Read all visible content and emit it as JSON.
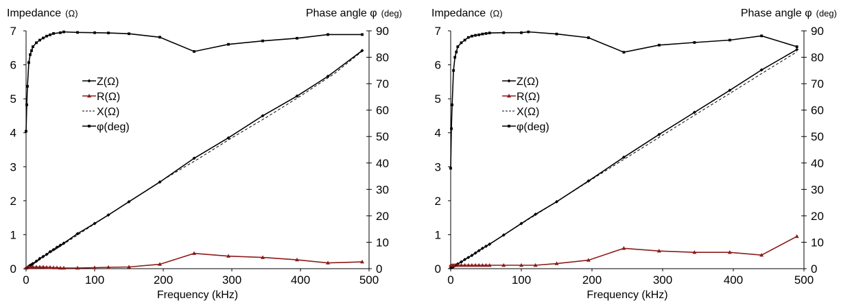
{
  "chart_data": [
    {
      "type": "line",
      "title": "",
      "left_axis_label": "Impedance",
      "left_axis_unit": "(Ω)",
      "right_axis_label": "Phase angle φ",
      "right_axis_unit": "(deg)",
      "xlabel": "Frequency (kHz)",
      "xlim": [
        0,
        500
      ],
      "ylim_left": [
        0,
        7
      ],
      "ylim_right": [
        0,
        90
      ],
      "x_ticks": [
        "0",
        "100",
        "200",
        "300",
        "400",
        "500"
      ],
      "y_left_ticks": [
        "0",
        "1",
        "2",
        "3",
        "4",
        "5",
        "6",
        "7"
      ],
      "y_right_ticks": [
        "0",
        "10",
        "20",
        "30",
        "40",
        "50",
        "60",
        "70",
        "80",
        "90"
      ],
      "legend_position": "center-left",
      "series": [
        {
          "name": "Z(Ω)",
          "axis": "left",
          "color": "#000000",
          "marker": "diamond",
          "dash": "",
          "x": [
            0,
            2,
            4,
            6,
            8,
            10,
            15,
            20,
            25,
            30,
            35,
            40,
            45,
            50,
            55,
            75,
            100,
            120,
            150,
            195,
            245,
            295,
            345,
            395,
            440,
            490
          ],
          "y": [
            0.02,
            0.04,
            0.07,
            0.1,
            0.12,
            0.15,
            0.22,
            0.3,
            0.36,
            0.42,
            0.5,
            0.56,
            0.63,
            0.69,
            0.75,
            1.03,
            1.33,
            1.58,
            1.97,
            2.55,
            3.25,
            3.85,
            4.5,
            5.08,
            5.66,
            6.42
          ]
        },
        {
          "name": "R(Ω)",
          "axis": "left",
          "color": "#8b1a1a",
          "marker": "triangle",
          "dash": "",
          "x": [
            0,
            2,
            4,
            6,
            8,
            10,
            15,
            20,
            25,
            30,
            35,
            40,
            45,
            50,
            55,
            75,
            100,
            120,
            150,
            195,
            245,
            295,
            345,
            395,
            440,
            490
          ],
          "y": [
            0.02,
            0.03,
            0.04,
            0.05,
            0.05,
            0.05,
            0.05,
            0.05,
            0.05,
            0.04,
            0.04,
            0.03,
            0.03,
            0.02,
            0.02,
            0.02,
            0.03,
            0.04,
            0.05,
            0.13,
            0.45,
            0.37,
            0.33,
            0.26,
            0.17,
            0.2
          ]
        },
        {
          "name": "X(Ω)",
          "axis": "left",
          "color": "#000000",
          "marker": "none",
          "dash": "4,3",
          "x": [
            0,
            50,
            100,
            150,
            200,
            250,
            300,
            350,
            400,
            450,
            490
          ],
          "y": [
            0.0,
            0.66,
            1.32,
            1.97,
            2.62,
            3.22,
            3.85,
            4.45,
            5.08,
            5.75,
            6.4
          ]
        },
        {
          "name": "φ(deg)",
          "axis": "right",
          "color": "#000000",
          "marker": "square",
          "dash": "",
          "x": [
            0,
            1,
            2,
            4,
            6,
            8,
            10,
            15,
            20,
            25,
            30,
            35,
            40,
            50,
            55,
            75,
            100,
            120,
            150,
            195,
            245,
            295,
            345,
            395,
            440,
            490
          ],
          "y": [
            52,
            62,
            69,
            78,
            81,
            82.5,
            84,
            85.5,
            86.5,
            87.3,
            88,
            88.5,
            89,
            89.3,
            89.6,
            89.4,
            89.3,
            89.2,
            88.9,
            87.6,
            82.2,
            84.9,
            86.2,
            87.2,
            88.6,
            88.6
          ]
        }
      ]
    },
    {
      "type": "line",
      "title": "",
      "left_axis_label": "Impedance",
      "left_axis_unit": "(Ω)",
      "right_axis_label": "Phase angle φ",
      "right_axis_unit": "(deg)",
      "xlabel": "Frequency (kHz)",
      "xlim": [
        0,
        500
      ],
      "ylim_left": [
        0,
        7
      ],
      "ylim_right": [
        0,
        90
      ],
      "x_ticks": [
        "0",
        "100",
        "200",
        "300",
        "400",
        "500"
      ],
      "y_left_ticks": [
        "0",
        "1",
        "2",
        "3",
        "4",
        "5",
        "6",
        "7"
      ],
      "y_right_ticks": [
        "0",
        "10",
        "20",
        "30",
        "40",
        "50",
        "60",
        "70",
        "80",
        "90"
      ],
      "legend_position": "center-left",
      "series": [
        {
          "name": "Z(Ω)",
          "axis": "left",
          "color": "#000000",
          "marker": "diamond",
          "dash": "",
          "x": [
            0,
            2,
            4,
            6,
            8,
            10,
            15,
            20,
            25,
            30,
            35,
            40,
            45,
            50,
            55,
            75,
            100,
            120,
            150,
            195,
            245,
            295,
            345,
            395,
            440,
            490
          ],
          "y": [
            0.02,
            0.04,
            0.06,
            0.09,
            0.11,
            0.14,
            0.2,
            0.27,
            0.33,
            0.39,
            0.46,
            0.53,
            0.6,
            0.66,
            0.72,
            0.99,
            1.33,
            1.6,
            1.97,
            2.58,
            3.28,
            3.95,
            4.6,
            5.25,
            5.85,
            6.45
          ]
        },
        {
          "name": "R(Ω)",
          "axis": "left",
          "color": "#8b1a1a",
          "marker": "triangle",
          "dash": "",
          "x": [
            0,
            2,
            4,
            6,
            8,
            10,
            15,
            20,
            25,
            30,
            35,
            40,
            45,
            50,
            55,
            75,
            100,
            120,
            150,
            195,
            245,
            295,
            345,
            395,
            440,
            490
          ],
          "y": [
            0.1,
            0.1,
            0.1,
            0.1,
            0.1,
            0.1,
            0.1,
            0.1,
            0.1,
            0.1,
            0.1,
            0.1,
            0.1,
            0.1,
            0.1,
            0.1,
            0.1,
            0.1,
            0.15,
            0.25,
            0.6,
            0.52,
            0.48,
            0.48,
            0.4,
            0.95
          ]
        },
        {
          "name": "X(Ω)",
          "axis": "left",
          "color": "#000000",
          "marker": "none",
          "dash": "4,3",
          "x": [
            0,
            50,
            100,
            150,
            200,
            250,
            300,
            350,
            400,
            450,
            490
          ],
          "y": [
            0.0,
            0.66,
            1.32,
            1.97,
            2.63,
            3.28,
            3.93,
            4.58,
            5.22,
            5.87,
            6.38
          ]
        },
        {
          "name": "φ(deg)",
          "axis": "right",
          "color": "#000000",
          "marker": "square",
          "dash": "",
          "x": [
            0,
            1,
            2,
            4,
            6,
            8,
            10,
            15,
            20,
            25,
            30,
            35,
            40,
            45,
            50,
            55,
            75,
            100,
            110,
            150,
            195,
            245,
            295,
            345,
            395,
            440,
            490
          ],
          "y": [
            38,
            53,
            62,
            75,
            80,
            82,
            84,
            85.5,
            86.5,
            87.5,
            88,
            88.3,
            88.5,
            88.8,
            89,
            89.2,
            89.3,
            89.3,
            89.6,
            88.8,
            87.4,
            81.9,
            84.6,
            85.6,
            86.5,
            88.1,
            84
          ]
        }
      ]
    }
  ]
}
